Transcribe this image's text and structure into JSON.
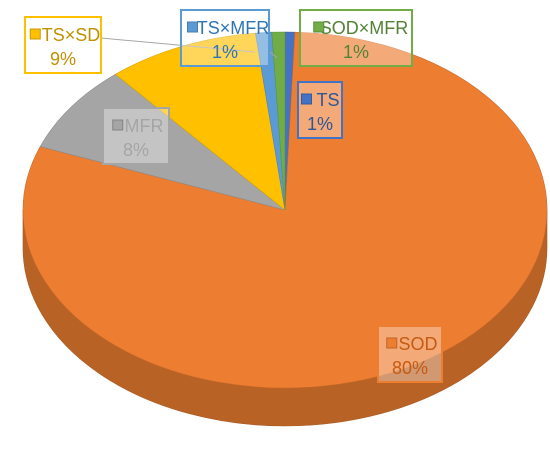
{
  "chart_data": {
    "type": "pie",
    "style": "3d",
    "title": "",
    "start_angle_deg": 0,
    "direction": "clockwise",
    "slices": [
      {
        "name": "TS",
        "percent_label": "1%",
        "value": 0.6,
        "color": "#4472C4",
        "label_color": "#2E5597"
      },
      {
        "name": "SOD",
        "percent_label": "80%",
        "value": 80.2,
        "color": "#ED7D31",
        "label_color": "#C55A11"
      },
      {
        "name": "MFR",
        "percent_label": "8%",
        "value": 8.0,
        "color": "#A5A5A5",
        "label_color": "#A5A5A5"
      },
      {
        "name": "TS×SD",
        "percent_label": "9%",
        "value": 9.4,
        "color": "#FFC000",
        "label_color": "#C09000"
      },
      {
        "name": "TS×MFR",
        "percent_label": "1%",
        "value": 1.0,
        "color": "#5B9BD5",
        "label_color": "#2E75B6"
      },
      {
        "name": "SOD×MFR",
        "percent_label": "1%",
        "value": 0.8,
        "color": "#70AD47",
        "label_color": "#548235"
      }
    ]
  }
}
